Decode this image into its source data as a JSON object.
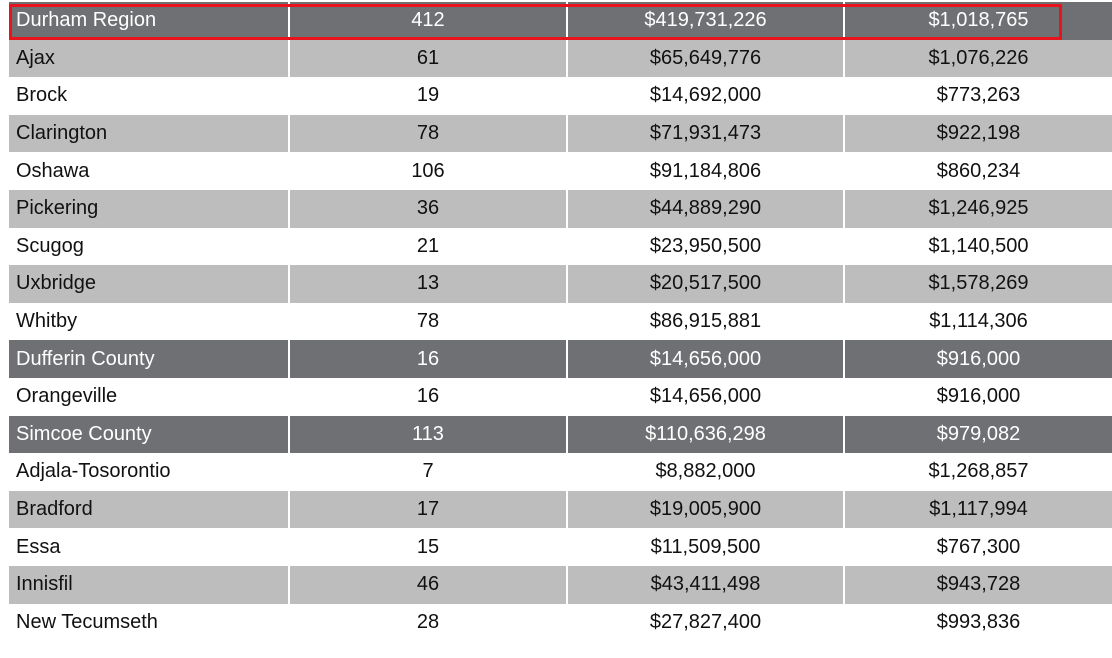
{
  "table": {
    "rows": [
      {
        "name": "Durham Region",
        "count": "412",
        "volume": "$419,731,226",
        "average": "$1,018,765",
        "style": "region"
      },
      {
        "name": "Ajax",
        "count": "61",
        "volume": "$65,649,776",
        "average": "$1,076,226",
        "style": "shaded"
      },
      {
        "name": "Brock",
        "count": "19",
        "volume": "$14,692,000",
        "average": "$773,263",
        "style": "plain"
      },
      {
        "name": "Clarington",
        "count": "78",
        "volume": "$71,931,473",
        "average": "$922,198",
        "style": "shaded"
      },
      {
        "name": "Oshawa",
        "count": "106",
        "volume": "$91,184,806",
        "average": "$860,234",
        "style": "plain"
      },
      {
        "name": "Pickering",
        "count": "36",
        "volume": "$44,889,290",
        "average": "$1,246,925",
        "style": "shaded"
      },
      {
        "name": "Scugog",
        "count": "21",
        "volume": "$23,950,500",
        "average": "$1,140,500",
        "style": "plain"
      },
      {
        "name": "Uxbridge",
        "count": "13",
        "volume": "$20,517,500",
        "average": "$1,578,269",
        "style": "shaded"
      },
      {
        "name": "Whitby",
        "count": "78",
        "volume": "$86,915,881",
        "average": "$1,114,306",
        "style": "plain"
      },
      {
        "name": "Dufferin County",
        "count": "16",
        "volume": "$14,656,000",
        "average": "$916,000",
        "style": "region"
      },
      {
        "name": "Orangeville",
        "count": "16",
        "volume": "$14,656,000",
        "average": "$916,000",
        "style": "plain"
      },
      {
        "name": "Simcoe County",
        "count": "113",
        "volume": "$110,636,298",
        "average": "$979,082",
        "style": "region"
      },
      {
        "name": "Adjala-Tosorontio",
        "count": "7",
        "volume": "$8,882,000",
        "average": "$1,268,857",
        "style": "plain"
      },
      {
        "name": "Bradford",
        "count": "17",
        "volume": "$19,005,900",
        "average": "$1,117,994",
        "style": "shaded"
      },
      {
        "name": "Essa",
        "count": "15",
        "volume": "$11,509,500",
        "average": "$767,300",
        "style": "plain"
      },
      {
        "name": "Innisfil",
        "count": "46",
        "volume": "$43,411,498",
        "average": "$943,728",
        "style": "shaded"
      },
      {
        "name": "New Tecumseth",
        "count": "28",
        "volume": "$27,827,400",
        "average": "$993,836",
        "style": "plain"
      }
    ]
  },
  "highlight": {
    "target_row": "Durham Region",
    "color": "#e8141b"
  },
  "colors": {
    "region_bg": "#6e7073",
    "shaded_bg": "#bdbdbd",
    "plain_bg": "#ffffff"
  }
}
